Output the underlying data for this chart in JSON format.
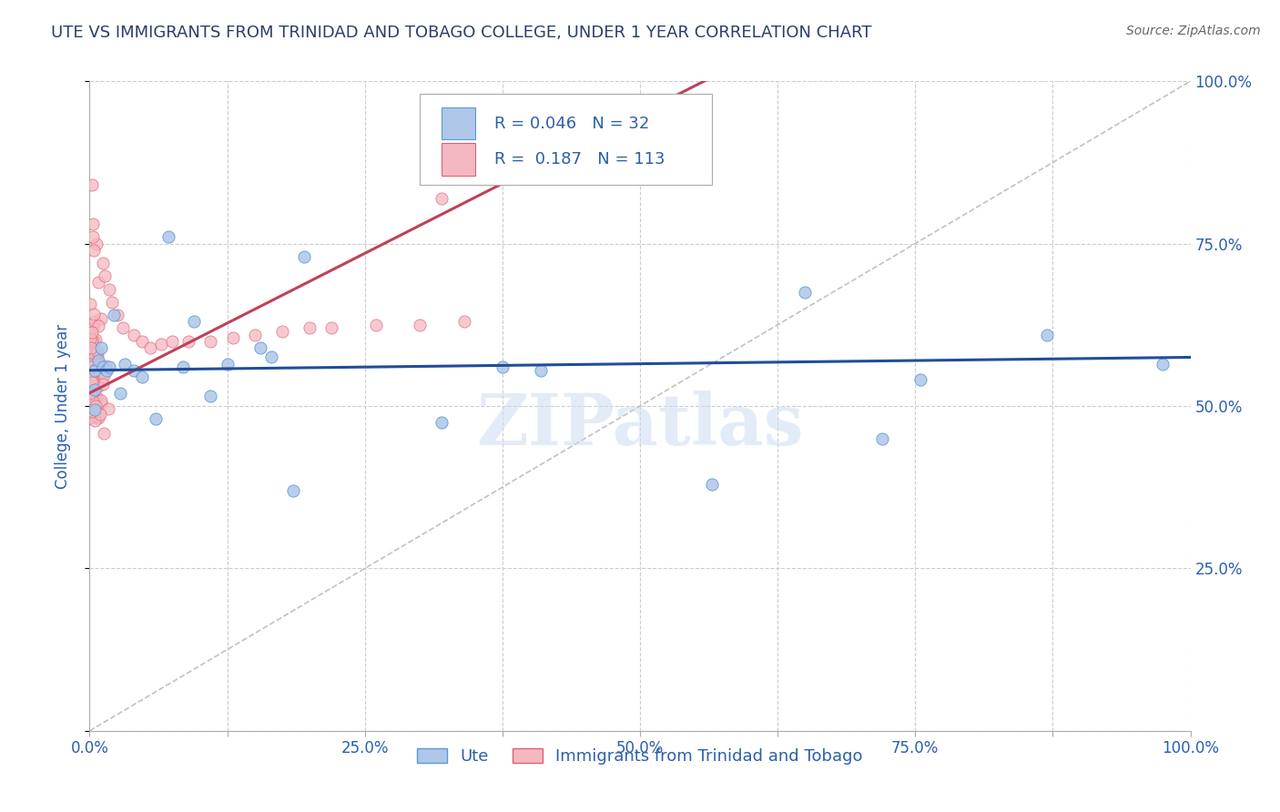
{
  "title": "UTE VS IMMIGRANTS FROM TRINIDAD AND TOBAGO COLLEGE, UNDER 1 YEAR CORRELATION CHART",
  "source_text": "Source: ZipAtlas.com",
  "ylabel": "College, Under 1 year",
  "xmin": 0.0,
  "xmax": 1.0,
  "ymin": 0.0,
  "ymax": 1.0,
  "xtick_labels": [
    "0.0%",
    "",
    "25.0%",
    "",
    "50.0%",
    "",
    "75.0%",
    "",
    "100.0%"
  ],
  "xtick_vals": [
    0.0,
    0.125,
    0.25,
    0.375,
    0.5,
    0.625,
    0.75,
    0.875,
    1.0
  ],
  "left_ytick_labels": [
    "",
    "",
    "",
    "",
    ""
  ],
  "left_ytick_vals": [
    0.0,
    0.25,
    0.5,
    0.75,
    1.0
  ],
  "right_ytick_labels": [
    "25.0%",
    "50.0%",
    "75.0%",
    "100.0%"
  ],
  "right_ytick_vals": [
    0.25,
    0.5,
    0.75,
    1.0
  ],
  "ute_color": "#aec6e8",
  "ute_edge_color": "#5b9bd5",
  "tt_color": "#f4b8c1",
  "tt_edge_color": "#e06070",
  "ute_R": 0.046,
  "ute_N": 32,
  "tt_R": 0.187,
  "tt_N": 113,
  "legend_text_color": "#2b5fad",
  "watermark": "ZIPatlas",
  "ute_x": [
    0.005,
    0.005,
    0.005,
    0.008,
    0.01,
    0.012,
    0.015,
    0.018,
    0.022,
    0.028,
    0.032,
    0.04,
    0.048,
    0.06,
    0.072,
    0.085,
    0.095,
    0.11,
    0.125,
    0.155,
    0.165,
    0.185,
    0.195,
    0.32,
    0.375,
    0.41,
    0.565,
    0.65,
    0.72,
    0.755,
    0.87,
    0.975
  ],
  "ute_y": [
    0.555,
    0.525,
    0.495,
    0.57,
    0.59,
    0.56,
    0.555,
    0.56,
    0.64,
    0.52,
    0.565,
    0.555,
    0.545,
    0.48,
    0.76,
    0.56,
    0.63,
    0.515,
    0.565,
    0.59,
    0.575,
    0.37,
    0.73,
    0.475,
    0.56,
    0.555,
    0.38,
    0.675,
    0.45,
    0.54,
    0.61,
    0.565
  ],
  "tt_x": [
    0.0,
    0.0,
    0.0,
    0.0,
    0.0,
    0.0,
    0.0,
    0.0,
    0.0,
    0.0,
    0.0,
    0.0,
    0.0,
    0.0,
    0.0,
    0.0,
    0.0,
    0.0,
    0.0,
    0.0,
    0.0,
    0.0,
    0.0,
    0.0,
    0.0,
    0.0,
    0.0,
    0.0,
    0.0,
    0.0,
    0.003,
    0.003,
    0.004,
    0.005,
    0.005,
    0.006,
    0.006,
    0.007,
    0.008,
    0.008,
    0.009,
    0.01,
    0.01,
    0.011,
    0.012,
    0.013,
    0.014,
    0.015,
    0.016,
    0.017,
    0.018,
    0.019,
    0.02,
    0.022,
    0.023,
    0.025,
    0.027,
    0.03,
    0.032,
    0.035,
    0.038,
    0.04,
    0.045,
    0.05,
    0.055,
    0.06,
    0.065,
    0.07,
    0.075,
    0.08,
    0.085,
    0.09,
    0.095,
    0.1,
    0.11,
    0.115,
    0.12,
    0.13,
    0.14,
    0.15,
    0.16,
    0.17,
    0.18,
    0.19,
    0.2,
    0.215,
    0.23,
    0.25,
    0.27,
    0.29,
    0.31,
    0.33,
    0.35,
    0.32,
    0.005,
    0.005,
    0.005,
    0.005,
    0.005,
    0.005,
    0.005,
    0.005,
    0.005,
    0.005,
    0.005,
    0.005,
    0.005,
    0.005,
    0.005,
    0.005,
    0.01,
    0.01,
    0.01
  ],
  "tt_y": [
    0.53,
    0.535,
    0.54,
    0.545,
    0.55,
    0.555,
    0.56,
    0.565,
    0.57,
    0.575,
    0.54,
    0.535,
    0.545,
    0.53,
    0.555,
    0.56,
    0.548,
    0.552,
    0.558,
    0.562,
    0.525,
    0.518,
    0.572,
    0.578,
    0.582,
    0.515,
    0.51,
    0.505,
    0.5,
    0.568,
    0.57,
    0.575,
    0.562,
    0.558,
    0.548,
    0.553,
    0.545,
    0.54,
    0.57,
    0.555,
    0.535,
    0.56,
    0.54,
    0.548,
    0.558,
    0.565,
    0.575,
    0.56,
    0.548,
    0.555,
    0.54,
    0.535,
    0.565,
    0.558,
    0.572,
    0.56,
    0.55,
    0.568,
    0.555,
    0.545,
    0.57,
    0.565,
    0.558,
    0.562,
    0.57,
    0.572,
    0.565,
    0.56,
    0.555,
    0.562,
    0.568,
    0.572,
    0.565,
    0.56,
    0.57,
    0.575,
    0.58,
    0.578,
    0.572,
    0.568,
    0.572,
    0.578,
    0.582,
    0.578,
    0.572,
    0.578,
    0.582,
    0.58,
    0.578,
    0.582,
    0.585,
    0.58,
    0.578,
    0.59,
    0.62,
    0.68,
    0.74,
    0.76,
    0.78,
    0.69,
    0.66,
    0.64,
    0.6,
    0.7,
    0.75,
    0.72,
    0.73,
    0.68,
    0.66,
    0.64,
    0.56,
    0.57,
    0.58
  ],
  "grid_color": "#cccccc",
  "bg_color": "#ffffff",
  "title_color": "#2c3e6b",
  "axis_label_color": "#2b5fad",
  "diag_color": "#cccccc",
  "ute_line_color": "#1f4e99",
  "tt_line_color": "#c0405a"
}
